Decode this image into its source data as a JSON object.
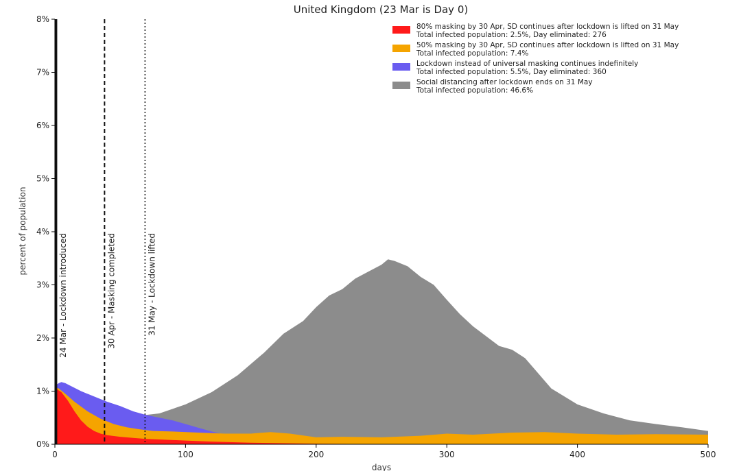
{
  "chart_data": {
    "type": "area",
    "title": "United Kingdom (23 Mar is Day 0)",
    "xlabel": "days",
    "ylabel": "percent of population",
    "xlim": [
      0,
      500
    ],
    "ylim": [
      0,
      8
    ],
    "xticks": [
      0,
      100,
      200,
      300,
      400,
      500
    ],
    "yticks": [
      0,
      1,
      2,
      3,
      4,
      5,
      6,
      7,
      8
    ],
    "ytick_format": "{v}%",
    "legend_position": "top-right",
    "vlines": [
      {
        "x": 1,
        "label": "24 Mar - Lockdown introduced",
        "style": "solid"
      },
      {
        "x": 38,
        "label": "30 Apr - Masking completed",
        "style": "dashed"
      },
      {
        "x": 69,
        "label": "31 May - Lockdown lifted",
        "style": "dotted"
      }
    ],
    "series": [
      {
        "name": "Social distancing after lockdown ends on 31 May",
        "detail": "Total infected population: 46.6%",
        "color": "#8c8c8c",
        "x": [
          69,
          80,
          100,
          120,
          140,
          160,
          175,
          190,
          200,
          210,
          220,
          230,
          240,
          250,
          255,
          260,
          270,
          280,
          290,
          300,
          310,
          320,
          340,
          350,
          360,
          380,
          400,
          420,
          440,
          460,
          480,
          500
        ],
        "y": [
          0.55,
          0.58,
          0.75,
          0.98,
          1.3,
          1.72,
          2.08,
          2.32,
          2.58,
          2.8,
          2.92,
          3.12,
          3.25,
          3.38,
          3.48,
          3.45,
          3.35,
          3.15,
          3.0,
          2.72,
          2.45,
          2.22,
          1.85,
          1.78,
          1.62,
          1.05,
          0.75,
          0.58,
          0.45,
          0.38,
          0.32,
          0.25
        ]
      },
      {
        "name": "Lockdown instead of universal masking continues indefinitely",
        "detail": "Total infected population: 5.5%, Day eliminated: 360",
        "color": "#6a5cf0",
        "x": [
          0,
          3,
          5,
          8,
          12,
          20,
          30,
          40,
          50,
          60,
          70,
          80,
          90,
          100,
          110,
          120,
          130,
          140,
          160,
          200,
          250,
          300,
          360
        ],
        "y": [
          1.1,
          1.15,
          1.17,
          1.15,
          1.1,
          1.0,
          0.9,
          0.8,
          0.72,
          0.62,
          0.55,
          0.5,
          0.45,
          0.38,
          0.31,
          0.24,
          0.18,
          0.14,
          0.09,
          0.05,
          0.03,
          0.01,
          0.0
        ]
      },
      {
        "name": "50% masking by 30 Apr, SD continues after lockdown is lifted on 31 May",
        "detail": "Total infected population: 7.4%",
        "color": "#f5a400",
        "x": [
          0,
          3,
          8,
          15,
          25,
          35,
          45,
          55,
          65,
          75,
          90,
          110,
          130,
          150,
          165,
          180,
          200,
          220,
          250,
          280,
          300,
          320,
          350,
          375,
          400,
          430,
          460,
          500
        ],
        "y": [
          1.07,
          1.05,
          0.95,
          0.8,
          0.62,
          0.48,
          0.38,
          0.32,
          0.28,
          0.25,
          0.24,
          0.22,
          0.2,
          0.2,
          0.23,
          0.2,
          0.13,
          0.14,
          0.13,
          0.16,
          0.2,
          0.18,
          0.22,
          0.23,
          0.2,
          0.18,
          0.19,
          0.18
        ]
      },
      {
        "name": "80% masking by 30 Apr, SD continues after lockdown is lifted on 31 May",
        "detail": "Total infected population: 2.5%, Day eliminated: 276",
        "color": "#ff1a1a",
        "x": [
          0,
          2,
          5,
          10,
          15,
          20,
          25,
          30,
          35,
          40,
          50,
          60,
          70,
          80,
          100,
          120,
          150,
          200,
          276
        ],
        "y": [
          1.05,
          1.03,
          0.98,
          0.82,
          0.62,
          0.45,
          0.33,
          0.25,
          0.2,
          0.17,
          0.14,
          0.12,
          0.1,
          0.09,
          0.07,
          0.05,
          0.03,
          0.01,
          0.0
        ]
      }
    ],
    "legend_order": [
      3,
      2,
      1,
      0
    ]
  }
}
